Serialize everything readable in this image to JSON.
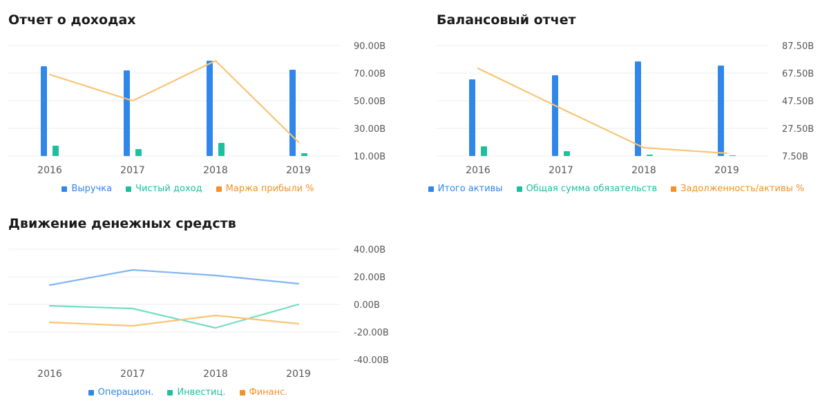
{
  "chart_data": [
    {
      "id": "income",
      "type": "bar",
      "title": "Отчет о доходах",
      "categories": [
        "2016",
        "2017",
        "2018",
        "2019"
      ],
      "y_axis": {
        "ticks": [
          "90.00B",
          "70.00B",
          "50.00B",
          "30.00B",
          "10.00B"
        ],
        "ylim": [
          10,
          90
        ]
      },
      "series": [
        {
          "name": "Выручка",
          "kind": "bar",
          "color": "#2f86eb",
          "values": [
            75,
            72,
            79,
            72.5
          ]
        },
        {
          "name": "Чистый доход",
          "kind": "bar",
          "color": "#1dbf9f",
          "values": [
            17.5,
            15,
            19.5,
            12
          ]
        },
        {
          "name": "Маржа прибыли %",
          "kind": "line",
          "color": "#f9c374",
          "legend_color": "#f5902b",
          "values": [
            69,
            50,
            79,
            20
          ]
        }
      ],
      "legend_position": "bottom",
      "grid": true
    },
    {
      "id": "balance",
      "type": "bar",
      "title": "Балансовый отчет",
      "categories": [
        "2016",
        "2017",
        "2018",
        "2019"
      ],
      "y_axis": {
        "ticks": [
          "87.50B",
          "67.50B",
          "47.50B",
          "27.50B",
          "7.50B"
        ],
        "ylim": [
          7.5,
          87.5
        ]
      },
      "series": [
        {
          "name": "Итого активы",
          "kind": "bar",
          "color": "#2f86eb",
          "values": [
            63,
            66,
            76,
            73
          ]
        },
        {
          "name": "Общая сумма обязательств",
          "kind": "bar",
          "color": "#1dbf9f",
          "values": [
            14.5,
            11,
            8.5,
            8
          ]
        },
        {
          "name": "Задолженность/активы %",
          "kind": "line",
          "color": "#f9c374",
          "legend_color": "#f5902b",
          "values": [
            71,
            42,
            13.5,
            9.5
          ]
        }
      ],
      "legend_position": "bottom",
      "grid": true
    },
    {
      "id": "cash",
      "type": "line",
      "title": "Движение денежных средств",
      "categories": [
        "2016",
        "2017",
        "2018",
        "2019"
      ],
      "y_axis": {
        "ticks": [
          "40.00B",
          "20.00B",
          "0.00B",
          "-20.00B",
          "-40.00B"
        ],
        "ylim": [
          -40,
          40
        ]
      },
      "series": [
        {
          "name": "Операцион.",
          "kind": "line",
          "color": "#80b5f3",
          "legend_color": "#2f86eb",
          "values": [
            14,
            25,
            21,
            15
          ]
        },
        {
          "name": "Инвестиц.",
          "kind": "line",
          "color": "#73dcc3",
          "legend_color": "#1dbf9f",
          "values": [
            -1,
            -3,
            -17,
            0
          ]
        },
        {
          "name": "Финанс.",
          "kind": "line",
          "color": "#f9c374",
          "legend_color": "#f5902b",
          "values": [
            -13,
            -15.5,
            -8,
            -14
          ]
        }
      ],
      "legend_position": "bottom",
      "grid": true
    }
  ]
}
